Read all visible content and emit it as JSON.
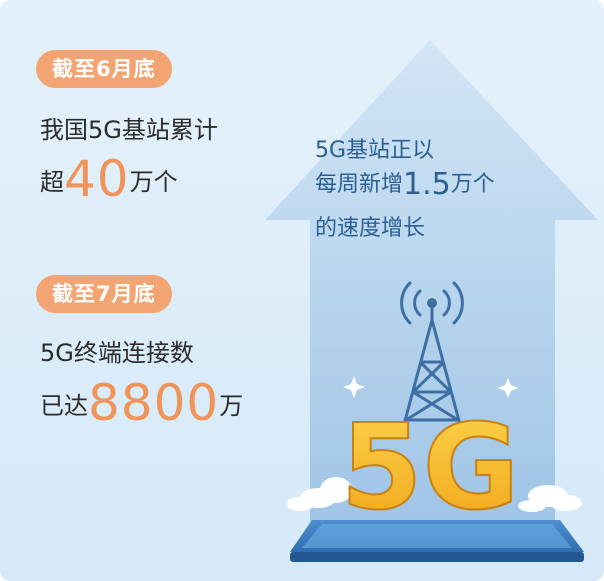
{
  "left": {
    "block1": {
      "badge": "截至6月底",
      "line1": "我国5G基站累计",
      "line2_pre": "超",
      "line2_num": "40",
      "line2_post": "万个"
    },
    "block2": {
      "badge": "截至7月底",
      "line1": "5G终端连接数",
      "line2_pre": "已达",
      "line2_num": "8800",
      "line2_post": "万"
    }
  },
  "arrow": {
    "line1": "5G基站正以",
    "line2_pre": "每周新增",
    "line2_num": "1.5",
    "line2_post": "万个",
    "line3": "的速度增长"
  },
  "graphic": {
    "logo": "5G"
  },
  "colors": {
    "badge": "#f2a572",
    "highlight": "#f0955a",
    "arrow": "#a9cbe9",
    "tower": "#3e6fa3",
    "logo": "#f5b731"
  }
}
